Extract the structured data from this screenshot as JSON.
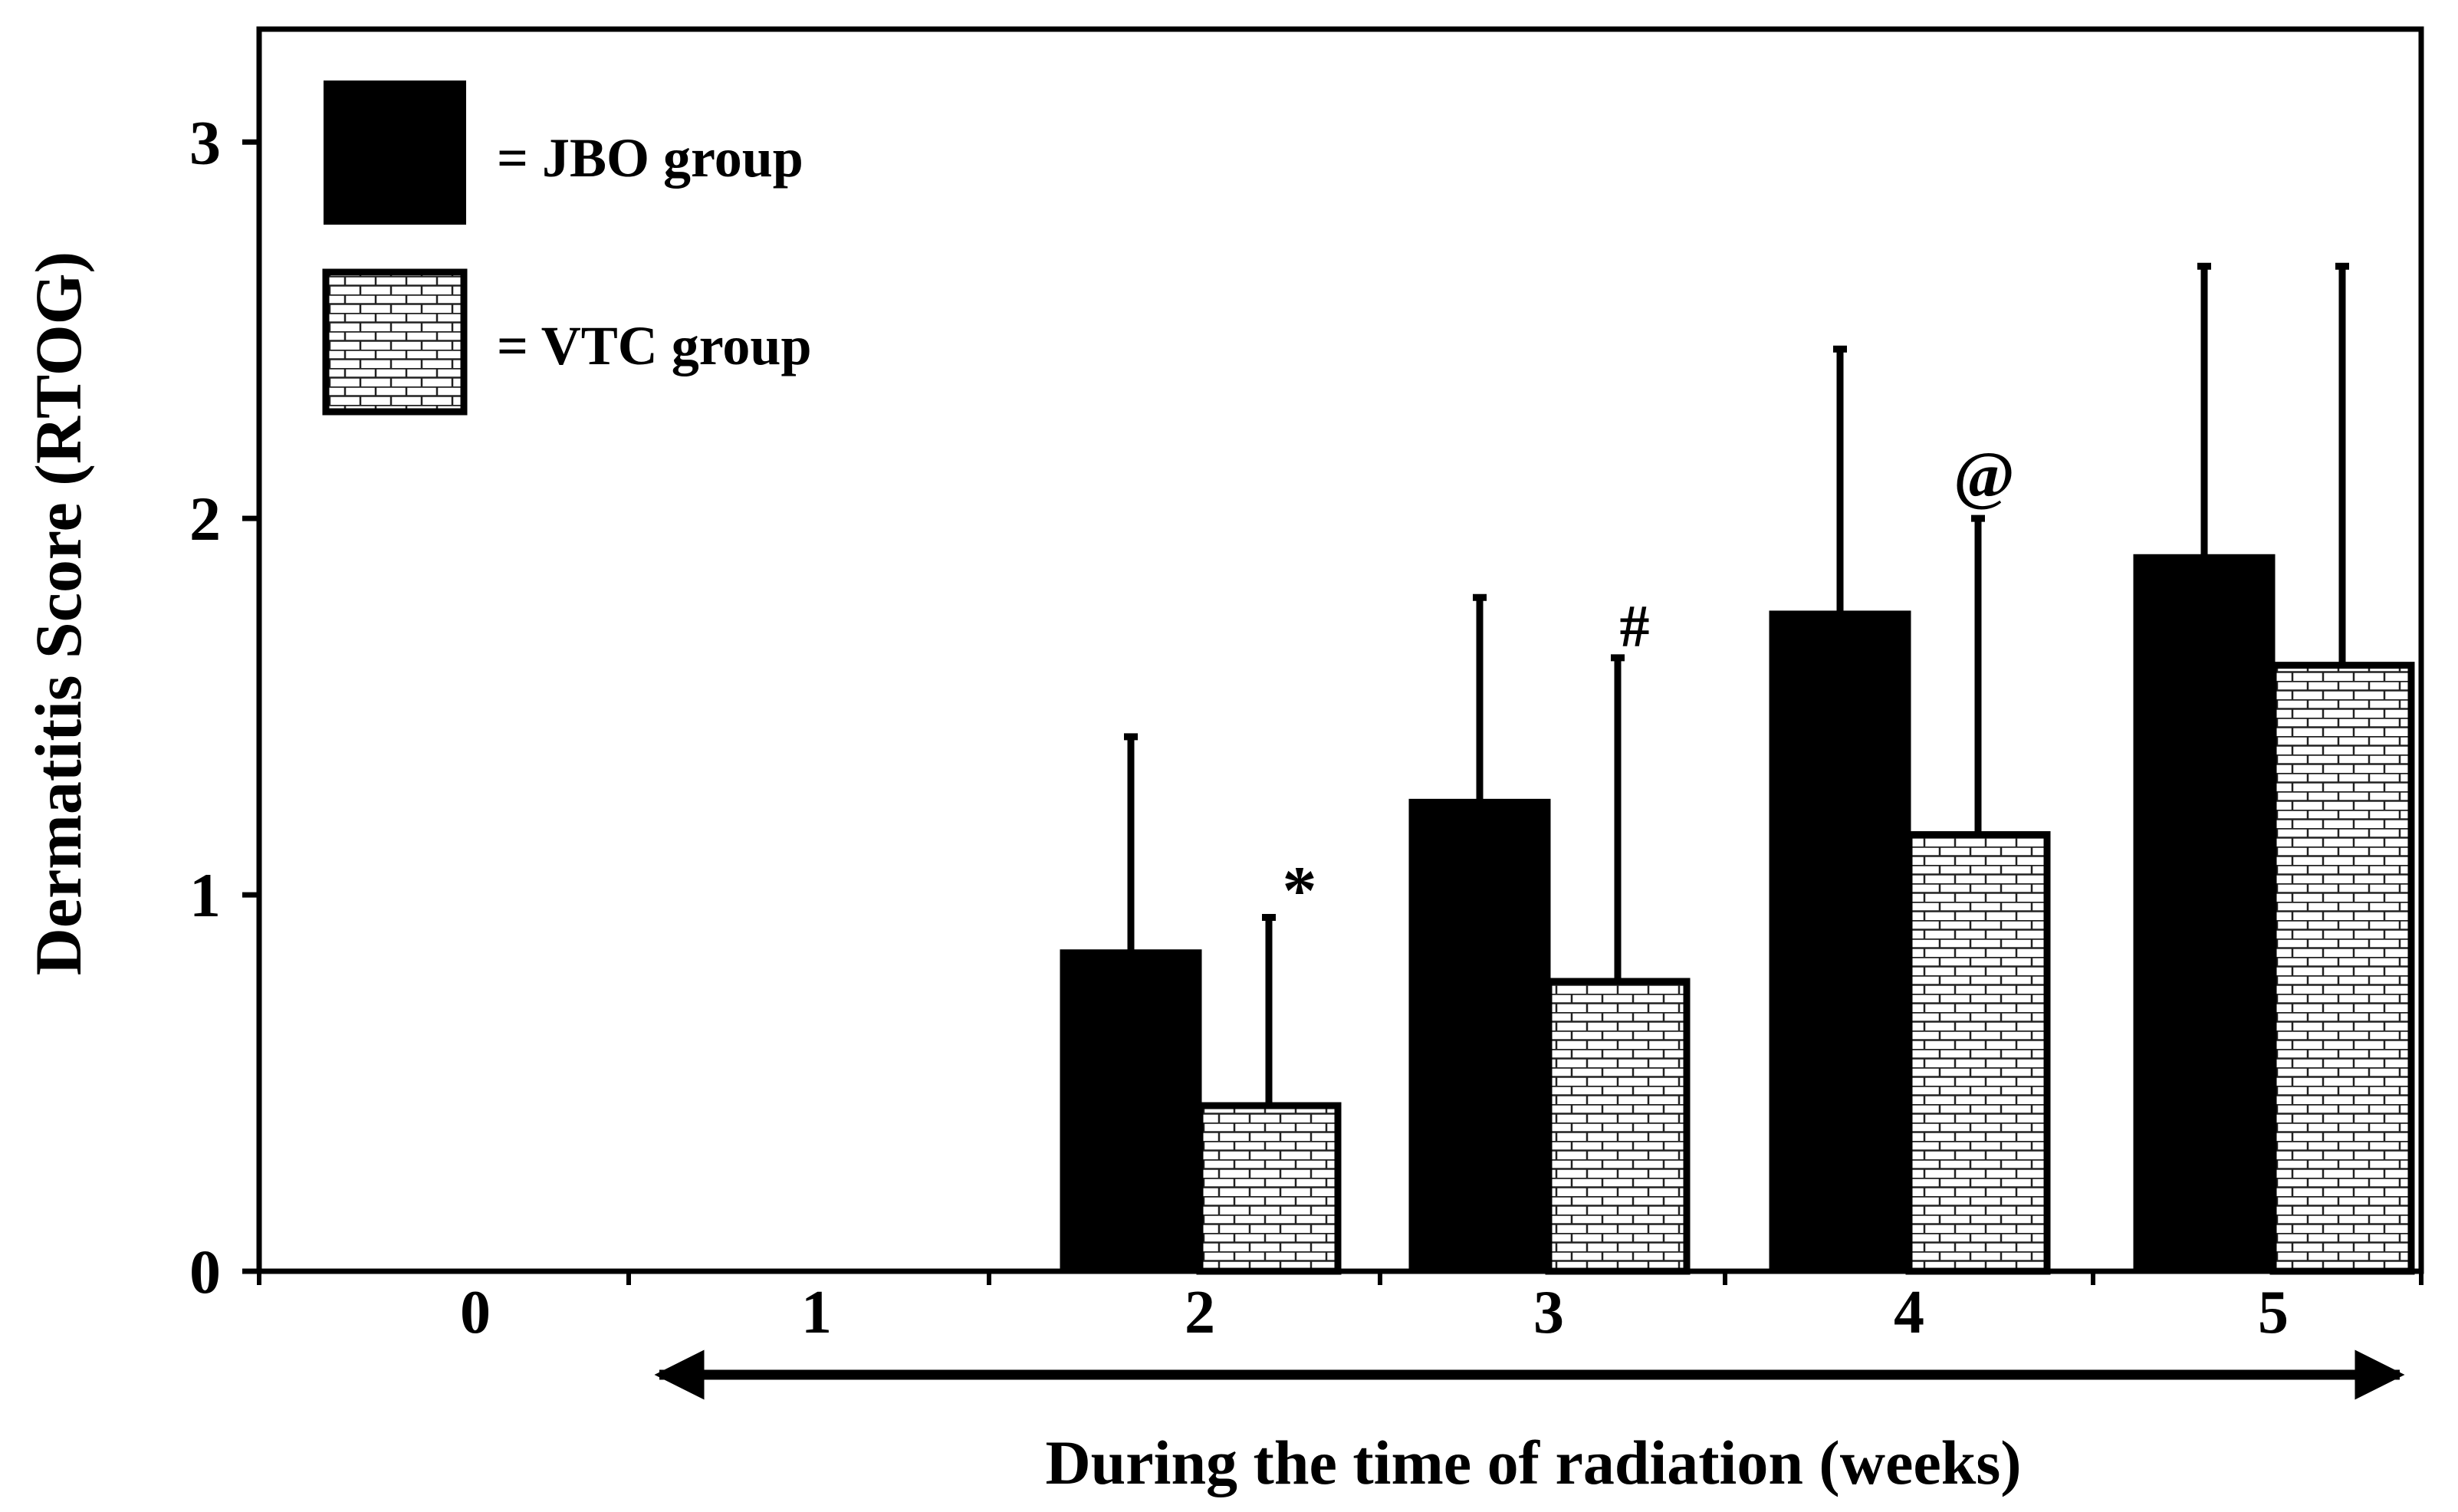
{
  "chart_data": {
    "type": "bar",
    "title": "",
    "xlabel": "During the time of radiation (weeks)",
    "ylabel": "Dermatitis Score (RTOG)",
    "ylim": [
      0,
      3.3
    ],
    "yticks": [
      "0",
      "1",
      "2",
      "3"
    ],
    "categories": [
      "0",
      "1",
      "2",
      "3",
      "4",
      "5"
    ],
    "series": [
      {
        "name": "= JBO group",
        "values": [
          0,
          0,
          0.85,
          1.25,
          1.75,
          1.9
        ],
        "errors": [
          0,
          0,
          0.57,
          0.54,
          0.7,
          0.77
        ],
        "color": "#000000"
      },
      {
        "name": "= VTC group",
        "values": [
          0,
          0,
          0.44,
          0.77,
          1.16,
          1.61
        ],
        "errors": [
          0,
          0,
          0.5,
          0.86,
          0.84,
          1.06
        ],
        "color": "#ffffff"
      }
    ],
    "annotations": [
      {
        "category": "2",
        "series": 1,
        "text": "*"
      },
      {
        "category": "3",
        "series": 1,
        "text": "#"
      },
      {
        "category": "4",
        "series": 1,
        "text": "@"
      }
    ],
    "grid": false,
    "legend": "top-left"
  }
}
